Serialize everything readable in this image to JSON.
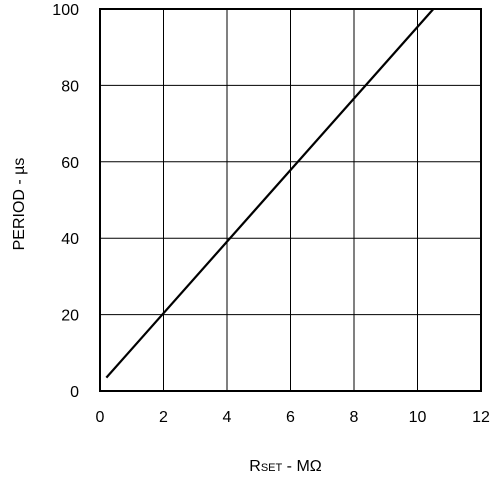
{
  "chart_data": {
    "type": "line",
    "title": "",
    "xlabel_main": "R",
    "xlabel_sub": "SET",
    "xlabel_suffix": " - MΩ",
    "ylabel": "PERIOD - µs",
    "xlim": [
      0,
      12
    ],
    "ylim": [
      0,
      100
    ],
    "x_ticks": [
      0,
      2,
      4,
      6,
      8,
      10,
      12
    ],
    "y_ticks": [
      0,
      20,
      40,
      60,
      80,
      100
    ],
    "grid": true,
    "series": [
      {
        "x": [
          0.2,
          10.5
        ],
        "y": [
          3.5,
          100
        ]
      }
    ],
    "colors": {
      "line": "#000000",
      "grid": "#000000",
      "background": "#ffffff"
    }
  }
}
